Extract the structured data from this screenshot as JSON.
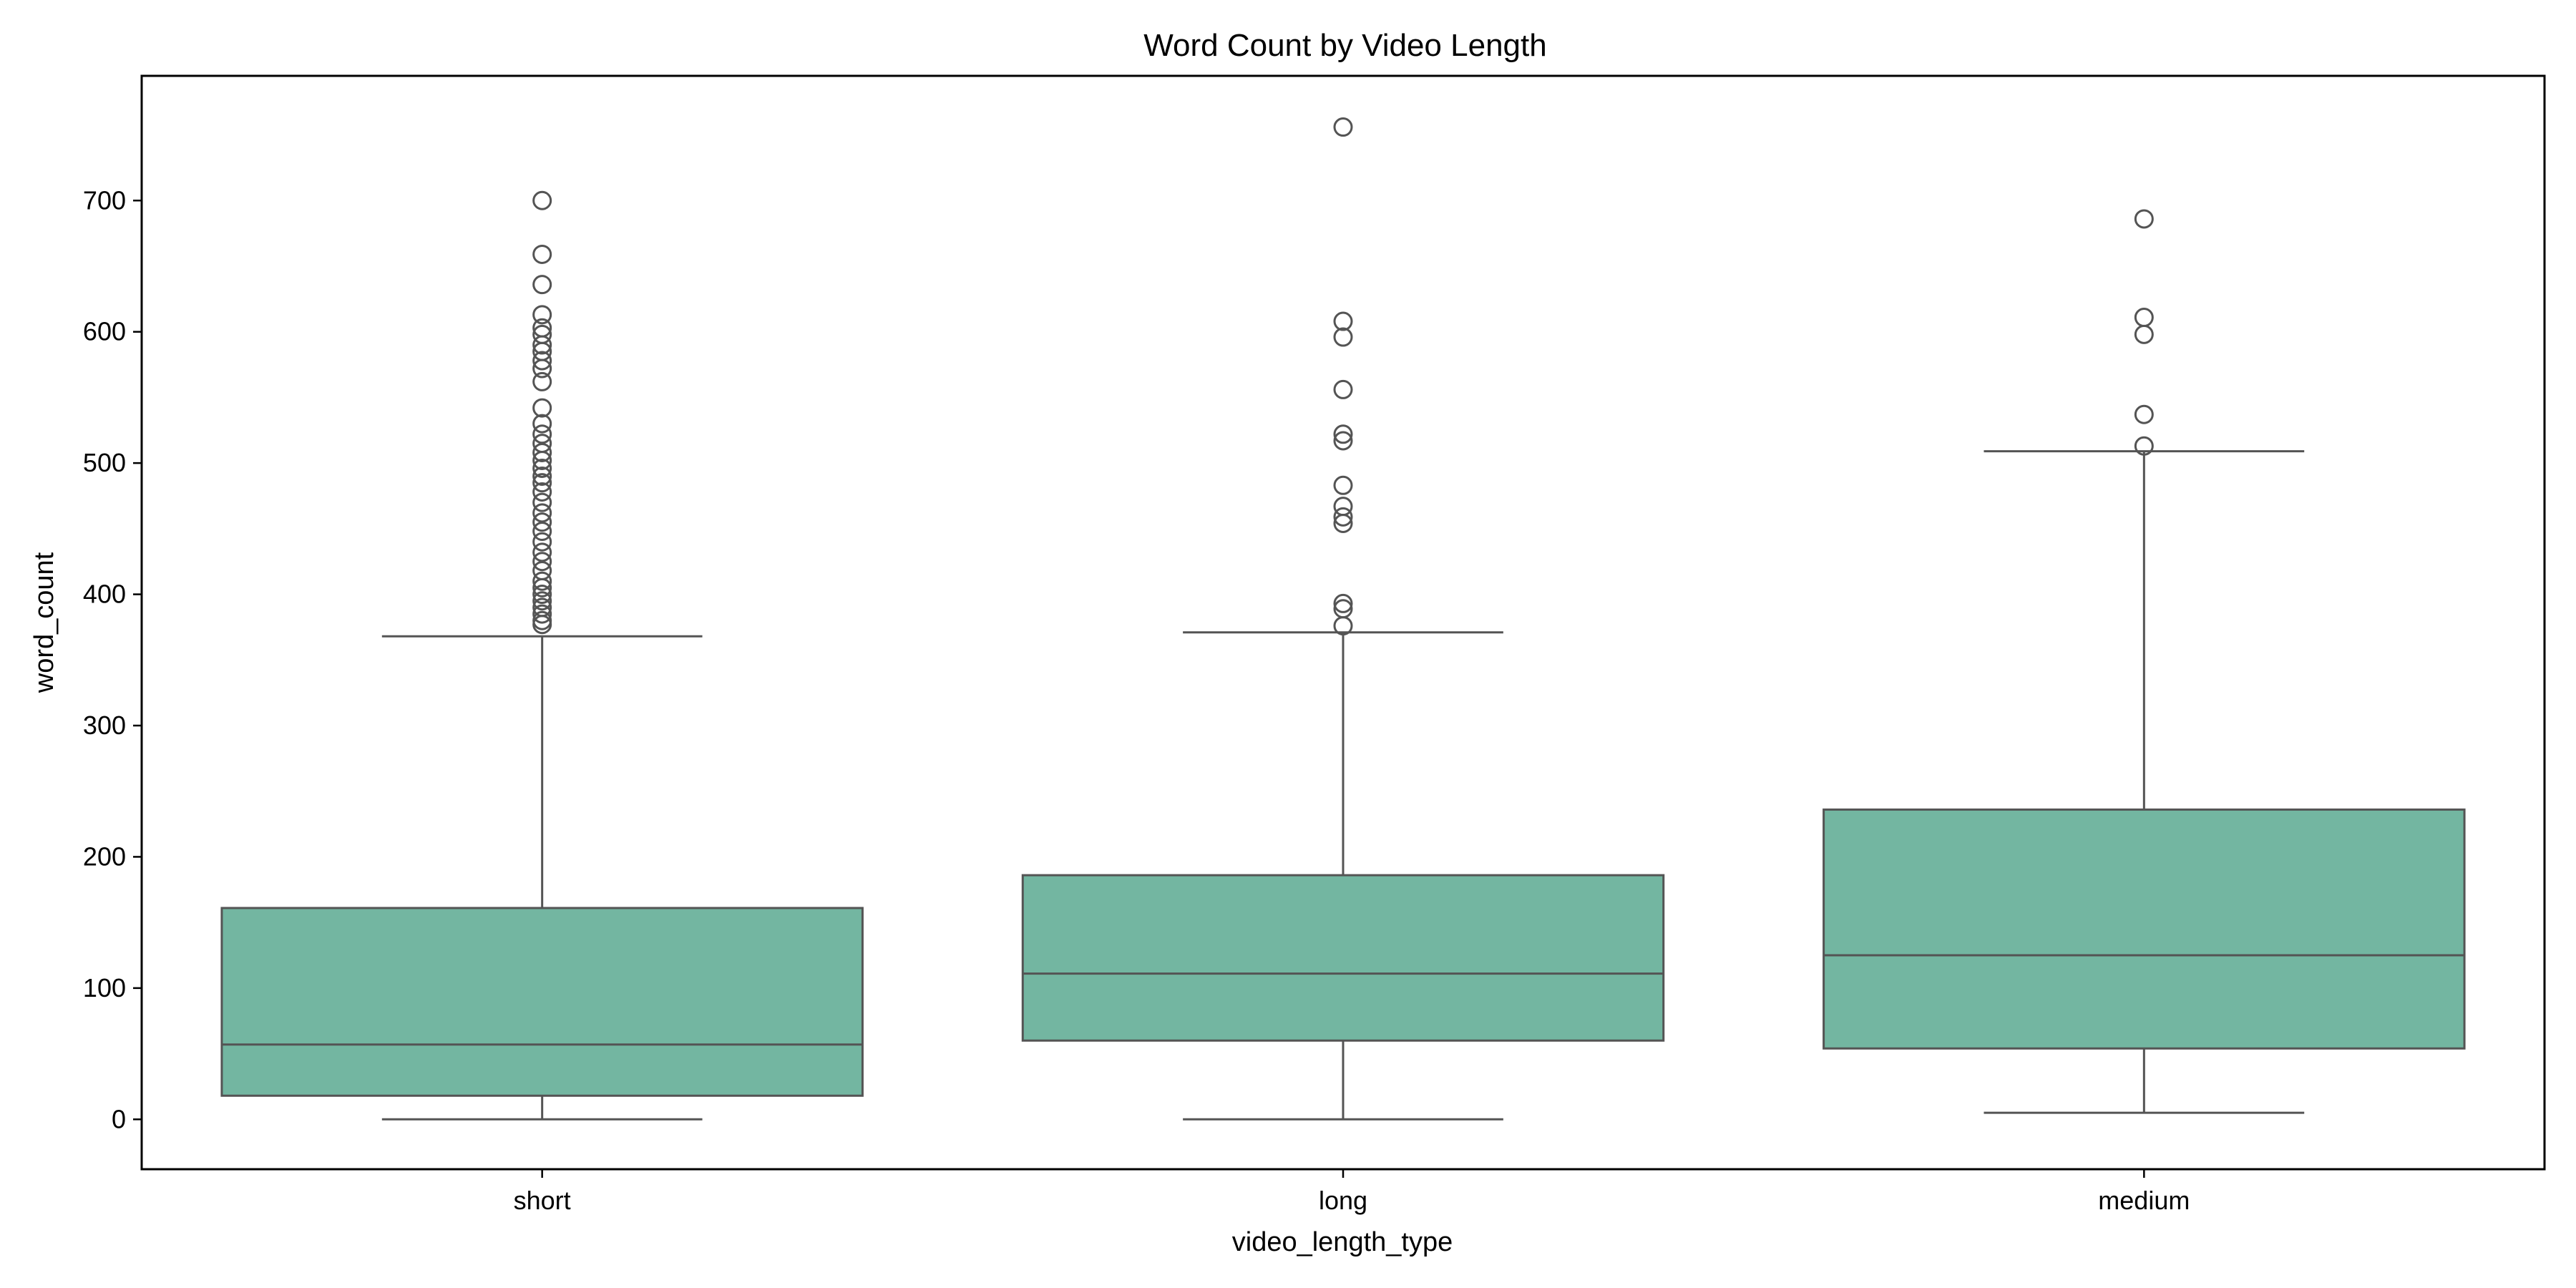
{
  "chart_data": {
    "type": "box",
    "title": "Word Count by Video Length",
    "xlabel": "video_length_type",
    "ylabel": "word_count",
    "ylim": [
      -38,
      795
    ],
    "yticks": [
      0,
      100,
      200,
      300,
      400,
      500,
      600,
      700
    ],
    "grid": false,
    "box_color": "#73b6a1",
    "line_color": "#545454",
    "categories": [
      "short",
      "long",
      "medium"
    ],
    "boxes": [
      {
        "category": "short",
        "whisker_low": 0,
        "q1": 18,
        "median": 57,
        "q3": 161,
        "whisker_high": 368,
        "outliers": [
          377,
          380,
          385,
          390,
          395,
          400,
          405,
          410,
          418,
          425,
          432,
          440,
          448,
          455,
          462,
          470,
          478,
          485,
          490,
          496,
          502,
          508,
          515,
          522,
          530,
          542,
          562,
          572,
          578,
          585,
          590,
          598,
          603,
          613,
          636,
          659,
          700
        ]
      },
      {
        "category": "long",
        "whisker_low": 0,
        "q1": 60,
        "median": 111,
        "q3": 186,
        "whisker_high": 371,
        "outliers": [
          376,
          389,
          393,
          454,
          459,
          467,
          483,
          517,
          522,
          556,
          596,
          608,
          756
        ]
      },
      {
        "category": "medium",
        "whisker_low": 5,
        "q1": 54,
        "median": 125,
        "q3": 236,
        "whisker_high": 509,
        "outliers": [
          513,
          537,
          598,
          611,
          686
        ]
      }
    ]
  }
}
